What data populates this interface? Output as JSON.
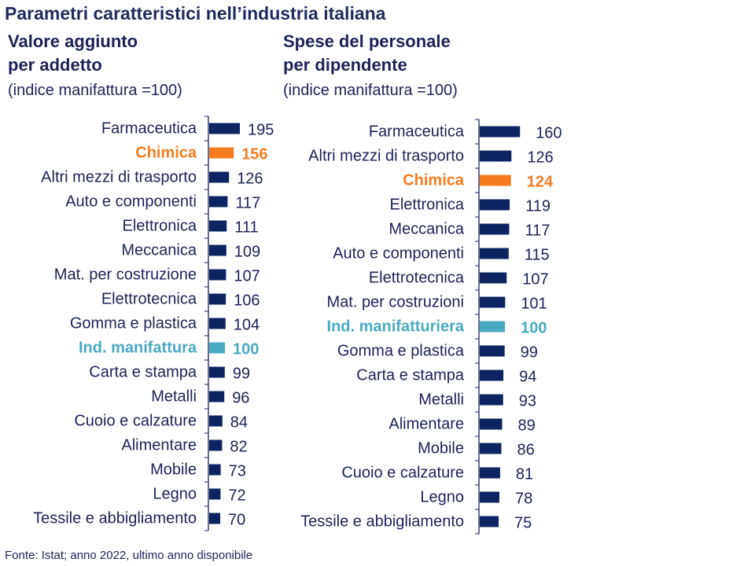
{
  "title": "Parametri caratteristici nell’industria italiana",
  "source": "Fonte: Istat; anno 2022, ultimo anno disponibile",
  "colors": {
    "default": "#0e2462",
    "highlight": "#f57c1f",
    "reference": "#4aa9c2",
    "text": "#1c2257"
  },
  "chart_data": [
    {
      "type": "bar",
      "orientation": "horizontal",
      "title_line1": "Valore aggiunto",
      "title_line2": "per addetto",
      "note": "(indice manifattura =100)",
      "categories": [
        "Farmaceutica",
        "Chimica",
        "Altri mezzi di trasporto",
        "Auto e componenti",
        "Elettronica",
        "Meccanica",
        "Mat. per costruzione",
        "Elettrotecnica",
        "Gomma e plastica",
        "Ind. manifattura",
        "Carta e stampa",
        "Metalli",
        "Cuoio e calzature",
        "Alimentare",
        "Mobile",
        "Legno",
        "Tessile e abbigliamento"
      ],
      "values": [
        195,
        156,
        126,
        117,
        111,
        109,
        107,
        106,
        104,
        100,
        99,
        96,
        84,
        82,
        73,
        72,
        70
      ],
      "highlight": [
        "Chimica"
      ],
      "reference": [
        "Ind. manifattura"
      ]
    },
    {
      "type": "bar",
      "orientation": "horizontal",
      "title_line1": "Spese del personale",
      "title_line2": "per dipendente",
      "note": "(indice manifattura =100)",
      "categories": [
        "Farmaceutica",
        "Altri mezzi di trasporto",
        "Chimica",
        "Elettronica",
        "Meccanica",
        "Auto e componenti",
        "Elettrotecnica",
        "Mat. per costruzioni",
        "Ind. manifatturiera",
        "Gomma e plastica",
        "Carta e stampa",
        "Metalli",
        "Alimentare",
        "Mobile",
        "Cuoio e calzature",
        "Legno",
        "Tessile e abbigliamento"
      ],
      "values": [
        160,
        126,
        124,
        119,
        117,
        115,
        107,
        101,
        100,
        99,
        94,
        93,
        89,
        86,
        81,
        78,
        75
      ],
      "highlight": [
        "Chimica"
      ],
      "reference": [
        "Ind. manifatturiera"
      ]
    }
  ]
}
